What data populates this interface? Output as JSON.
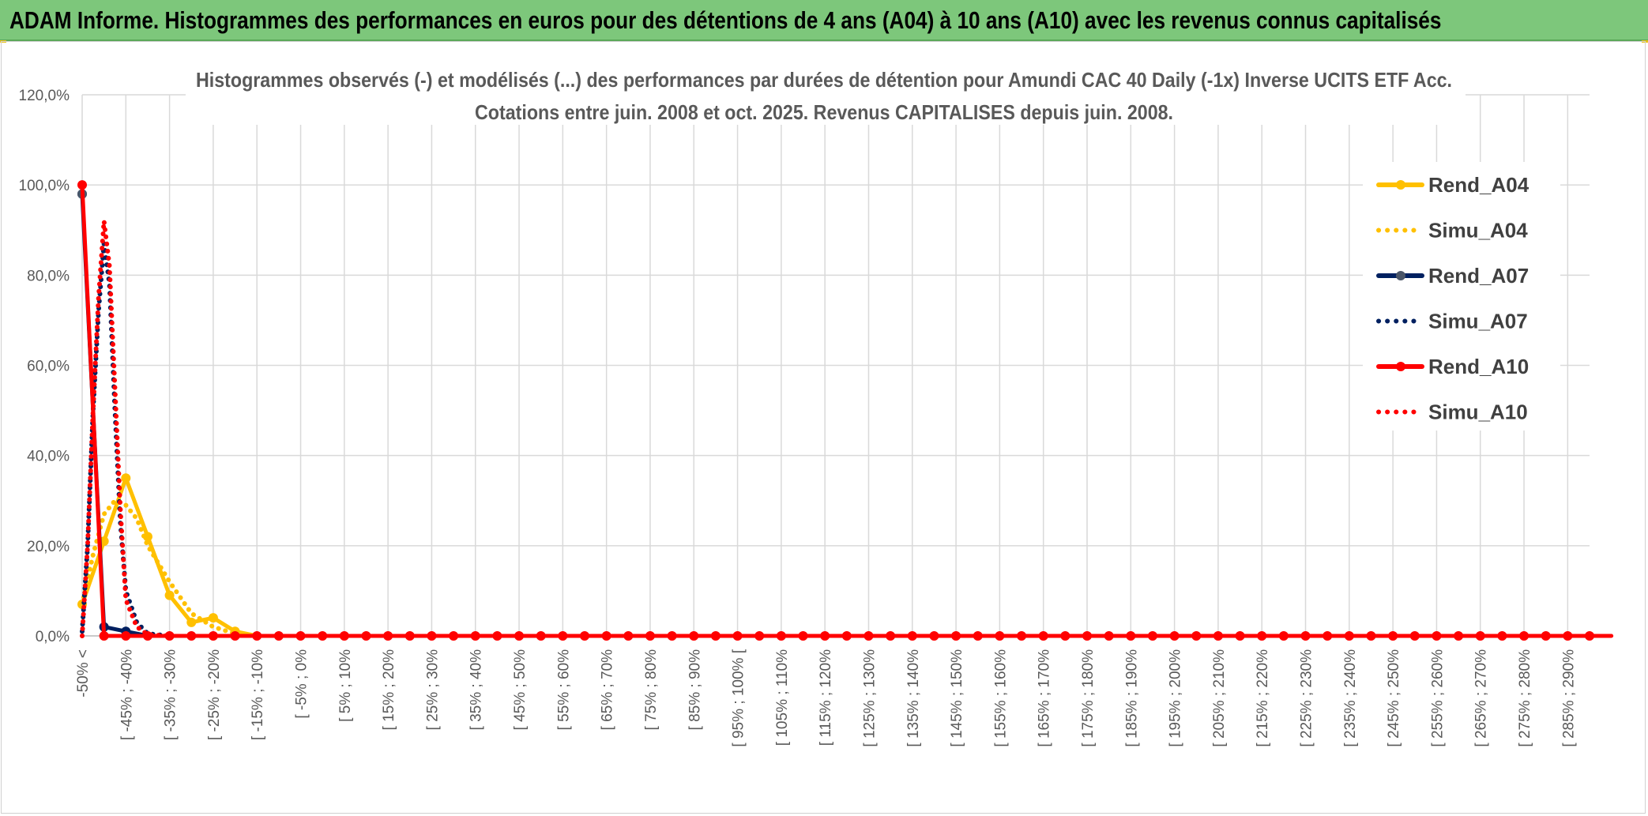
{
  "banner": {
    "title": "ADAM Informe. Histogrammes des performances en euros pour des détentions de 4 ans (A04) à 10 ans (A10) avec les revenus connus capitalisés"
  },
  "chart_data": {
    "type": "line",
    "title": "Histogrammes observés (-) et modélisés (...) des performances par durées de détention pour Amundi CAC 40 Daily (-1x) Inverse UCITS ETF Acc.",
    "subtitle": "Cotations entre juin. 2008 et oct. 2025. Revenus CAPITALISES depuis juin. 2008.",
    "xlabel": "",
    "ylabel": "",
    "ylim": [
      0,
      120
    ],
    "y_ticks": [
      "0,0%",
      "20,0%",
      "40,0%",
      "60,0%",
      "80,0%",
      "100,0%",
      "120,0%"
    ],
    "grid": true,
    "legend_position": "right",
    "categories": [
      "-50% <",
      "[ -45% ; -40%",
      "[ -35% ; -30%",
      "[ -25% ; -20%",
      "[ -15% ; -10%",
      "[ -5% ; 0%",
      "[ 5% ; 10%",
      "[ 15% ; 20%",
      "[ 25% ; 30%",
      "[ 35% ; 40%",
      "[ 45% ; 50%",
      "[ 55% ; 60%",
      "[ 65% ; 70%",
      "[ 75% ; 80%",
      "[ 85% ; 90%",
      "[ 95% ; 100% [",
      "[ 105% ; 110%",
      "[ 115% ; 120%",
      "[ 125% ; 130%",
      "[ 135% ; 140%",
      "[ 145% ; 150%",
      "[ 155% ; 160%",
      "[ 165% ; 170%",
      "[ 175% ; 180%",
      "[ 185% ; 190%",
      "[ 195% ; 200%",
      "[ 205% ; 210%",
      "[ 215% ; 220%",
      "[ 225% ; 230%",
      "[ 235% ; 240%",
      "[ 245% ; 250%",
      "[ 255% ; 260%",
      "[ 265% ; 270%",
      "[ 275% ; 280%",
      "[ 285% ; 290%"
    ],
    "bins_count": 70,
    "series": [
      {
        "name": "Rend_A04",
        "style": "solid",
        "color": "#ffc000",
        "points": [
          [
            0,
            7
          ],
          [
            1,
            21
          ],
          [
            2,
            35
          ],
          [
            3,
            22
          ],
          [
            4,
            9
          ],
          [
            5,
            3
          ],
          [
            6,
            4
          ],
          [
            7,
            1
          ],
          [
            8,
            0
          ]
        ]
      },
      {
        "name": "Simu_A04",
        "style": "dotted",
        "color": "#ffc000",
        "points": [
          [
            0,
            7
          ],
          [
            0.5,
            18
          ],
          [
            1,
            27
          ],
          [
            1.5,
            30
          ],
          [
            2,
            29
          ],
          [
            2.5,
            26
          ],
          [
            3,
            20
          ],
          [
            3.5,
            16
          ],
          [
            4,
            12
          ],
          [
            5,
            5
          ],
          [
            6,
            2
          ],
          [
            7,
            0.5
          ],
          [
            8,
            0
          ]
        ]
      },
      {
        "name": "Rend_A07",
        "style": "solid",
        "color": "#002060",
        "points": [
          [
            0,
            98
          ],
          [
            1,
            2
          ],
          [
            2,
            1
          ],
          [
            3,
            0
          ]
        ]
      },
      {
        "name": "Simu_A07",
        "style": "dotted",
        "color": "#002060",
        "points": [
          [
            0,
            1
          ],
          [
            0.25,
            20
          ],
          [
            0.5,
            50
          ],
          [
            0.75,
            72
          ],
          [
            1,
            87
          ],
          [
            1.25,
            78
          ],
          [
            1.5,
            50
          ],
          [
            1.75,
            25
          ],
          [
            2,
            10
          ],
          [
            2.5,
            3
          ],
          [
            3,
            0.5
          ],
          [
            4,
            0
          ]
        ]
      },
      {
        "name": "Rend_A10",
        "style": "solid",
        "color": "#ff0000",
        "points": [
          [
            0,
            100
          ],
          [
            1,
            0
          ],
          [
            70,
            0
          ]
        ]
      },
      {
        "name": "Simu_A10",
        "style": "dotted",
        "color": "#ff0000",
        "points": [
          [
            0,
            0
          ],
          [
            0.25,
            20
          ],
          [
            0.5,
            50
          ],
          [
            0.75,
            75
          ],
          [
            1,
            92
          ],
          [
            1.25,
            82
          ],
          [
            1.5,
            55
          ],
          [
            1.75,
            28
          ],
          [
            2,
            8
          ],
          [
            2.5,
            2
          ],
          [
            3,
            0.3
          ],
          [
            4,
            0
          ]
        ]
      }
    ]
  }
}
